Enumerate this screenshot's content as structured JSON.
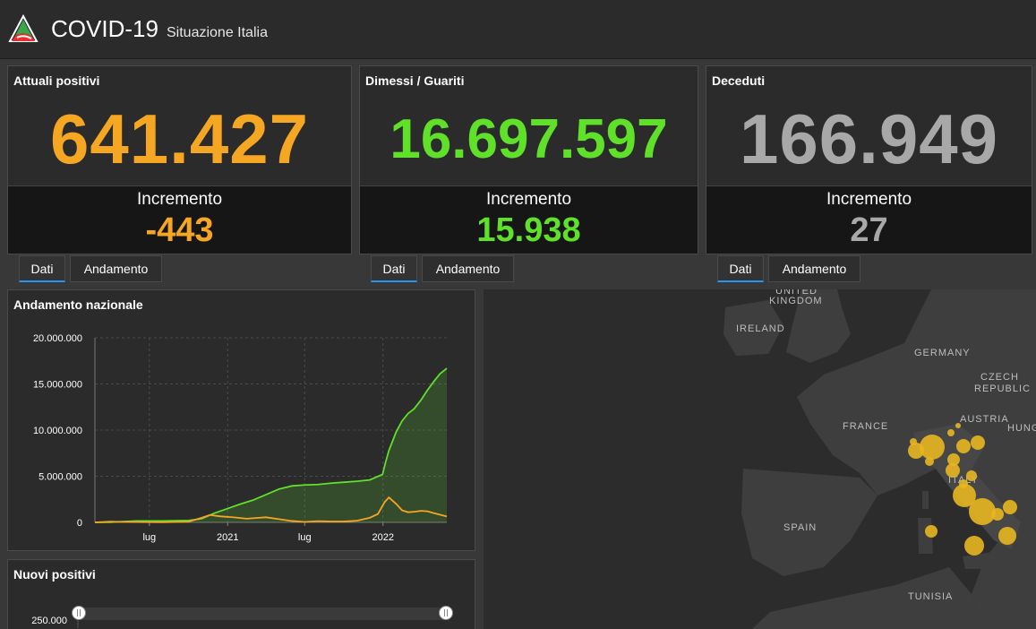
{
  "header": {
    "title": "COVID-19",
    "subtitle": "Situazione Italia"
  },
  "cards": [
    {
      "title": "Attuali positivi",
      "value": "641.427",
      "increment_label": "Incremento",
      "increment": "-443",
      "color": "#f5a623",
      "tabs": [
        "Dati",
        "Andamento"
      ]
    },
    {
      "title": "Dimessi / Guariti",
      "value": "16.697.597",
      "increment_label": "Incremento",
      "increment": "15.938",
      "color": "#5fe12a",
      "tabs": [
        "Dati",
        "Andamento"
      ]
    },
    {
      "title": "Deceduti",
      "value": "166.949",
      "increment_label": "Incremento",
      "increment": "27",
      "color": "#a8a8a8",
      "tabs": [
        "Dati",
        "Andamento"
      ]
    }
  ],
  "andamento": {
    "title": "Andamento nazionale"
  },
  "nuovi": {
    "title": "Nuovi positivi",
    "y_tick": "250.000",
    "slider": {
      "start": 0,
      "end": 1
    }
  },
  "map": {
    "labels": [
      "UNITED",
      "KINGDOM",
      "IRELAND",
      "GERMANY",
      "CZECH",
      "REPUBLIC",
      "AUSTRIA",
      "HUNG",
      "FRANCE",
      "ITALY",
      "SPAIN",
      "TUNISIA"
    ],
    "bubble_color": "#e8b620"
  },
  "chart_data": {
    "type": "line",
    "title": "Andamento nazionale",
    "xlabel": "",
    "ylabel": "",
    "ylim": [
      0,
      20000000
    ],
    "y_ticks": [
      "0",
      "5.000.000",
      "10.000.000",
      "15.000.000",
      "20.000.000"
    ],
    "x_ticks": [
      "lug",
      "2021",
      "lug",
      "2022"
    ],
    "grid": true,
    "series": [
      {
        "color": "#5fe12a",
        "fill": true,
        "x": [
          "2020-02-24",
          "2020-04-01",
          "2020-06-01",
          "2020-08-01",
          "2020-10-01",
          "2020-11-01",
          "2020-12-01",
          "2021-01-01",
          "2021-02-01",
          "2021-03-01",
          "2021-04-01",
          "2021-05-01",
          "2021-06-01",
          "2021-07-01",
          "2021-08-01",
          "2021-09-01",
          "2021-10-01",
          "2021-11-01",
          "2021-12-01",
          "2021-12-31",
          "2022-01-07",
          "2022-01-15",
          "2022-02-01",
          "2022-02-15",
          "2022-03-01",
          "2022-03-15",
          "2022-04-01",
          "2022-04-15",
          "2022-05-01",
          "2022-05-15",
          "2022-05-31"
        ],
        "y": [
          0,
          20000,
          150000,
          160000,
          200000,
          400000,
          1000000,
          1500000,
          2000000,
          2400000,
          3000000,
          3600000,
          3950000,
          4050000,
          4100000,
          4250000,
          4350000,
          4450000,
          4600000,
          5200000,
          6500000,
          7800000,
          9800000,
          11000000,
          11800000,
          12300000,
          13300000,
          14300000,
          15300000,
          16100000,
          16697597
        ]
      },
      {
        "color": "#f5a623",
        "fill": false,
        "x": [
          "2020-02-24",
          "2020-04-01",
          "2020-06-01",
          "2020-08-01",
          "2020-10-01",
          "2020-11-01",
          "2020-11-20",
          "2020-12-15",
          "2021-01-15",
          "2021-02-15",
          "2021-03-15",
          "2021-04-01",
          "2021-05-01",
          "2021-06-01",
          "2021-07-01",
          "2021-08-01",
          "2021-09-01",
          "2021-10-01",
          "2021-11-01",
          "2021-12-01",
          "2021-12-20",
          "2022-01-05",
          "2022-01-15",
          "2022-02-01",
          "2022-02-15",
          "2022-03-01",
          "2022-03-15",
          "2022-04-01",
          "2022-04-15",
          "2022-05-01",
          "2022-05-31"
        ],
        "y": [
          0,
          80000,
          40000,
          15000,
          70000,
          500000,
          800000,
          650000,
          550000,
          400000,
          500000,
          550000,
          350000,
          150000,
          50000,
          130000,
          90000,
          90000,
          180000,
          500000,
          900000,
          2200000,
          2700000,
          2000000,
          1300000,
          1100000,
          1150000,
          1250000,
          1200000,
          1000000,
          641427
        ]
      }
    ]
  }
}
